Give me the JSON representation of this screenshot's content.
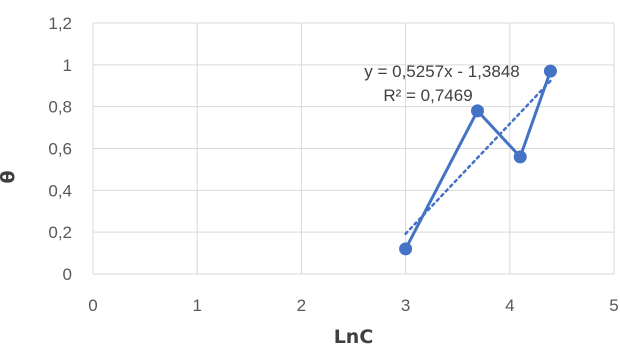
{
  "chart_data": {
    "type": "scatter",
    "xlabel": "LnC",
    "ylabel": "θ",
    "xlim": [
      0,
      5
    ],
    "ylim": [
      0,
      1.2
    ],
    "x_ticks": [
      "0",
      "1",
      "2",
      "3",
      "4",
      "5"
    ],
    "y_ticks": [
      "0",
      "0,2",
      "0,4",
      "0,6",
      "0,8",
      "1",
      "1,2"
    ],
    "grid": true,
    "series": [
      {
        "x": [
          3.0,
          3.69,
          4.1,
          4.39
        ],
        "y": [
          0.12,
          0.78,
          0.56,
          0.97
        ],
        "color": "#4472C4",
        "connected": true
      }
    ],
    "trendline": {
      "style": "dotted",
      "color": "#4472C4",
      "equation": "y = 0,5257x - 1,3848",
      "r_squared": "R² = 0,7469",
      "slope": 0.5257,
      "intercept": -1.3848,
      "x_range": [
        3.0,
        4.39
      ]
    }
  }
}
